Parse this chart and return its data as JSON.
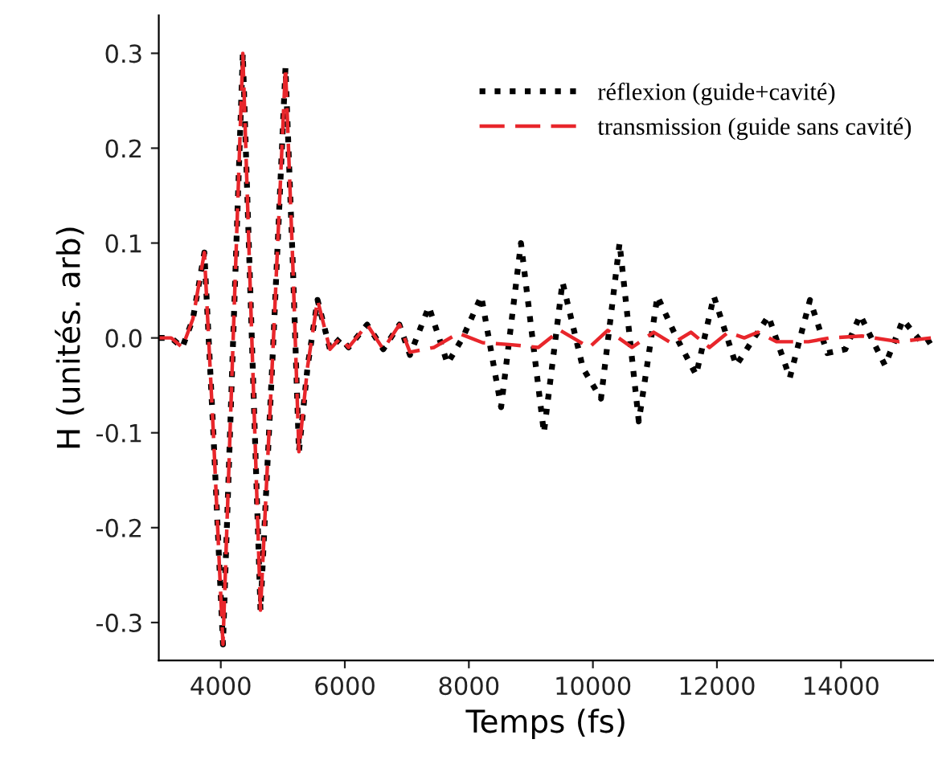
{
  "chart_data": {
    "type": "line",
    "xlabel": "Temps (fs)",
    "ylabel": "H (unités. arb)",
    "xlim": [
      3000,
      15500
    ],
    "xticks": [
      4000,
      6000,
      8000,
      10000,
      12000,
      14000
    ],
    "ylim": [
      -0.34,
      0.34
    ],
    "yticks": [
      -0.3,
      -0.2,
      -0.1,
      {
        "value": 0,
        "label": "0.0"
      },
      0.1,
      0.2,
      0.3
    ],
    "grid": false,
    "legend": "top right",
    "marker": "none",
    "series": [
      {
        "name": "réflexion (guide+cavité)",
        "color": "#000000",
        "line_style": "dotted",
        "x": [
          3000,
          3200,
          3380,
          3550,
          3735,
          3880,
          4035,
          4200,
          4355,
          4500,
          4640,
          4850,
          5043,
          5160,
          5260,
          5400,
          5560,
          5760,
          5930,
          6060,
          6360,
          6620,
          6880,
          7050,
          7355,
          7655,
          7900,
          8200,
          8520,
          8840,
          9210,
          9510,
          9840,
          10130,
          10430,
          10740,
          11040,
          11350,
          11665,
          11950,
          12310,
          12830,
          13175,
          13500,
          13780,
          14070,
          14310,
          14710,
          15000,
          15330,
          15500
        ],
        "values": [
          0,
          0,
          -0.01,
          0.02,
          0.09,
          -0.1,
          -0.323,
          0.0,
          0.3,
          0.0,
          -0.287,
          0.0,
          0.285,
          0.08,
          -0.12,
          -0.03,
          0.04,
          -0.012,
          0.0,
          -0.01,
          0.014,
          -0.012,
          0.014,
          -0.018,
          0.033,
          -0.027,
          0.0,
          0.044,
          -0.073,
          0.1,
          -0.1,
          0.059,
          -0.032,
          -0.064,
          0.1,
          -0.088,
          0.044,
          0.0,
          -0.039,
          0.044,
          -0.029,
          0.023,
          -0.042,
          0.04,
          -0.016,
          -0.012,
          0.024,
          -0.029,
          0.019,
          -0.007,
          0.0
        ]
      },
      {
        "name": "transmission (guide sans cavité)",
        "color": "#e8262b",
        "line_style": "dashed",
        "x": [
          3000,
          3200,
          3380,
          3550,
          3735,
          3880,
          4035,
          4200,
          4355,
          4500,
          4640,
          4850,
          5043,
          5160,
          5260,
          5400,
          5560,
          5760,
          5930,
          6060,
          6360,
          6620,
          6880,
          7050,
          7440,
          7830,
          8220,
          8650,
          9120,
          9470,
          9940,
          10240,
          10630,
          10980,
          11280,
          11580,
          11880,
          12180,
          12440,
          12660,
          12960,
          13475,
          13820,
          14340,
          14940,
          15450
        ],
        "values": [
          0,
          0,
          -0.01,
          0.02,
          0.09,
          -0.1,
          -0.323,
          0.0,
          0.3,
          0.0,
          -0.287,
          0.0,
          0.285,
          0.08,
          -0.12,
          -0.03,
          0.04,
          -0.012,
          0.0,
          -0.01,
          0.014,
          -0.012,
          0.014,
          -0.015,
          -0.01,
          0.005,
          -0.005,
          -0.007,
          -0.01,
          0.008,
          -0.01,
          0.008,
          -0.01,
          0.006,
          -0.006,
          0.006,
          -0.01,
          0.006,
          0.0,
          0.006,
          -0.004,
          -0.004,
          0.0,
          0.002,
          -0.004,
          0.0
        ]
      }
    ]
  }
}
